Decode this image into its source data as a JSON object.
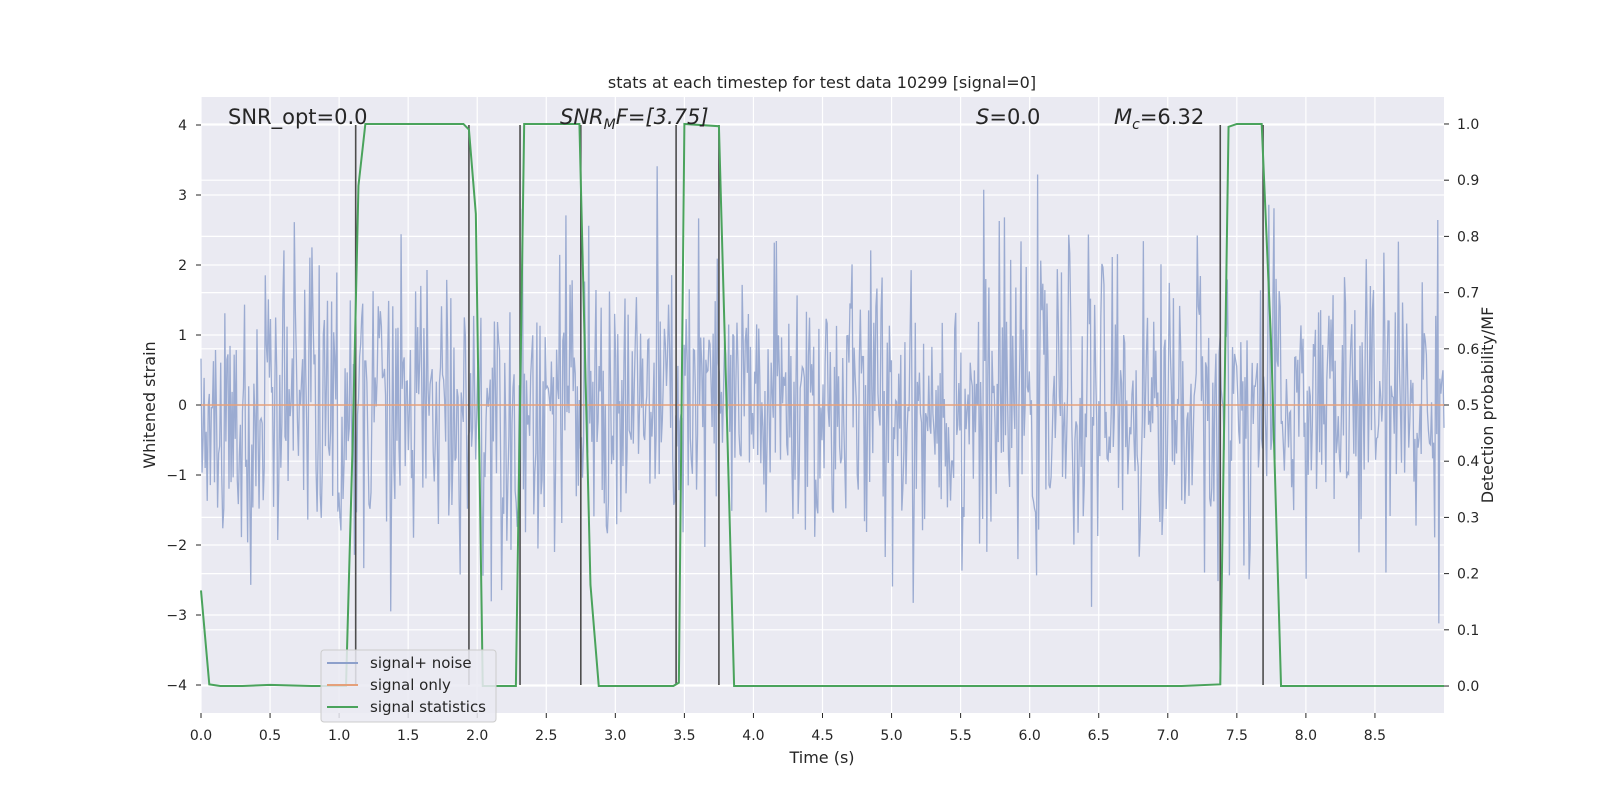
{
  "chart_data": {
    "type": "line",
    "title": "stats at each timestep for test data 10299 [signal=0]",
    "xlabel": "Time (s)",
    "ylabel": "Whitened strain",
    "y2label": "Detection probability/MF",
    "xlim": [
      0,
      9
    ],
    "ylim": [
      -4.4,
      4.4
    ],
    "y2lim": [
      -0.048,
      1.048
    ],
    "x_ticks": [
      0.0,
      0.5,
      1.0,
      1.5,
      2.0,
      2.5,
      3.0,
      3.5,
      4.0,
      4.5,
      5.0,
      5.5,
      6.0,
      6.5,
      7.0,
      7.5,
      8.0,
      8.5
    ],
    "x_tick_labels": [
      "0.0",
      "0.5",
      "1.0",
      "1.5",
      "2.0",
      "2.5",
      "3.0",
      "3.5",
      "4.0",
      "4.5",
      "5.0",
      "5.5",
      "6.0",
      "6.5",
      "7.0",
      "7.5",
      "8.0",
      "8.5"
    ],
    "y_ticks": [
      -4,
      -3,
      -2,
      -1,
      0,
      1,
      2,
      3,
      4
    ],
    "y_tick_labels": [
      "−4",
      "−3",
      "−2",
      "−1",
      "0",
      "1",
      "2",
      "3",
      "4"
    ],
    "y2_ticks": [
      0.0,
      0.1,
      0.2,
      0.3,
      0.4,
      0.5,
      0.6,
      0.7,
      0.8,
      0.9,
      1.0
    ],
    "y2_tick_labels": [
      "0.0",
      "0.1",
      "0.2",
      "0.3",
      "0.4",
      "0.5",
      "0.6",
      "0.7",
      "0.8",
      "0.9",
      "1.0"
    ],
    "grid": true,
    "legend_position": "lower-left",
    "annotations": {
      "snr_opt": "SNR_opt=0.0",
      "snr_mf_math": "SNR",
      "snr_mf_sub": "M",
      "snr_mf_rest": "F=[3.75]",
      "s_math": "S",
      "s_rest": "=0.0",
      "mc_math": "M",
      "mc_sub": "c",
      "mc_rest": "=6.32"
    },
    "series": [
      {
        "name": "signal+ noise",
        "color": "#8da0cb",
        "kind": "noise",
        "envelope": {
          "typical_upper": 1.6,
          "typical_lower": -1.6,
          "max": 4.0,
          "min": -3.95
        }
      },
      {
        "name": "signal only",
        "color": "#e5a07a",
        "kind": "constant",
        "value": 0.0
      },
      {
        "name": "signal statistics",
        "color": "#4aa35c",
        "kind": "line",
        "axis": "right",
        "x": [
          0.0,
          0.06,
          0.14,
          0.3,
          0.5,
          0.8,
          1.05,
          1.1,
          1.14,
          1.19,
          1.9,
          1.94,
          1.99,
          2.04,
          2.23,
          2.28,
          2.34,
          2.74,
          2.82,
          2.88,
          3.42,
          3.46,
          3.5,
          3.75,
          3.8,
          3.86,
          7.1,
          7.38,
          7.44,
          7.5,
          7.68,
          7.75,
          7.82,
          8.0,
          9.0
        ],
        "y": [
          0.17,
          0.003,
          0.0,
          0.0,
          0.002,
          0.0,
          0.0,
          0.45,
          0.89,
          1.0,
          1.0,
          0.99,
          0.84,
          0.0,
          0.0,
          0.0,
          1.0,
          1.0,
          0.18,
          0.0,
          0.0,
          0.006,
          1.0,
          0.996,
          0.55,
          0.0,
          0.0,
          0.003,
          0.995,
          1.0,
          1.0,
          0.6,
          0.0,
          0.0,
          0.0
        ]
      }
    ],
    "vertical_lines": {
      "color": "#4d4d4d",
      "x": [
        1.12,
        1.94,
        2.31,
        2.75,
        3.44,
        3.75,
        7.38,
        7.69
      ]
    }
  }
}
